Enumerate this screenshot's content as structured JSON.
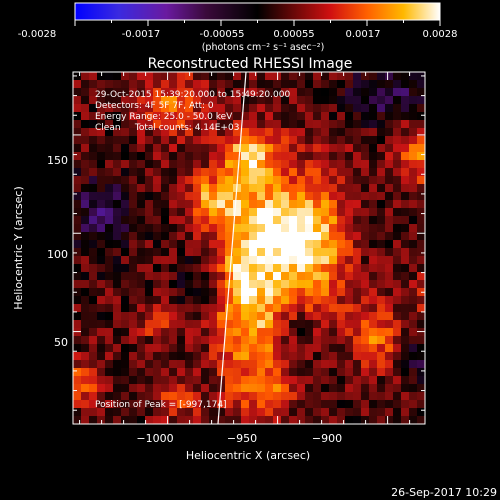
{
  "colorbar": {
    "ticks": [
      "-0.0028",
      "-0.0017",
      "-0.00055",
      "0.00055",
      "0.0017",
      "0.0028"
    ],
    "unit": "(photons cm⁻² s⁻¹ asec⁻²)"
  },
  "title": "Reconstructed RHESSI Image",
  "info": {
    "line1": "29-Oct-2015 15:39:20.000 to 15:49:20.000",
    "line2": "Detectors: 4F 5F 7F, Att: 0",
    "line3": "Energy Range: 25.0 - 50.0 keV",
    "line4": "Clean     Total counts: 4.14E+03",
    "peak": "Position of Peak = [-997,174]"
  },
  "footer": {
    "timestamp": "26-Sep-2017 10:29"
  },
  "chart_data": {
    "type": "heatmap",
    "title": "Reconstructed RHESSI Image",
    "xlabel": "Heliocentric X (arcsec)",
    "ylabel": "Heliocentric Y (arcsec)",
    "xlim": [
      -1043,
      -983
    ],
    "ylim": [
      3,
      182
    ],
    "x_ticks": [
      -1000,
      -950,
      -900
    ],
    "y_ticks": [
      50,
      100,
      150
    ],
    "x_tick_labels": [
      "−1000",
      "−950",
      "−900"
    ],
    "y_tick_labels": [
      "50",
      "100",
      "150"
    ],
    "color_range": [
      -0.0028,
      0.0028
    ],
    "colormap": [
      "#0000c8",
      "#5a1eb4",
      "#3c0a50",
      "#000000",
      "#5a0a0a",
      "#c81414",
      "#ff5a00",
      "#ffb400",
      "#ffffff"
    ],
    "sources": [
      {
        "x": -962,
        "y": 78,
        "sx": 12,
        "sy": 40,
        "amp": 1.0
      },
      {
        "x": -945,
        "y": 100,
        "sx": 8,
        "sy": 15,
        "amp": 0.7
      },
      {
        "x": -930,
        "y": 95,
        "sx": 10,
        "sy": 28,
        "amp": 0.7
      },
      {
        "x": -980,
        "y": 118,
        "sx": 10,
        "sy": 8,
        "amp": 0.6
      },
      {
        "x": -962,
        "y": 140,
        "sx": 10,
        "sy": 8,
        "amp": 0.6
      },
      {
        "x": -905,
        "y": 48,
        "sx": 8,
        "sy": 12,
        "amp": 0.55
      },
      {
        "x": -998,
        "y": 165,
        "sx": 10,
        "sy": 12,
        "amp": 0.55
      },
      {
        "x": -1038,
        "y": 25,
        "sx": 6,
        "sy": 8,
        "amp": 0.5
      },
      {
        "x": -1005,
        "y": 55,
        "sx": 6,
        "sy": 6,
        "amp": 0.45
      },
      {
        "x": -995,
        "y": 15,
        "sx": 8,
        "sy": 6,
        "amp": 0.4
      },
      {
        "x": -885,
        "y": 140,
        "sx": 8,
        "sy": 12,
        "amp": 0.55
      },
      {
        "x": -875,
        "y": 70,
        "sx": 8,
        "sy": 10,
        "amp": 0.5
      },
      {
        "x": -955,
        "y": 20,
        "sx": 8,
        "sy": 6,
        "amp": 0.4
      },
      {
        "x": -985,
        "y": 75,
        "sx": 8,
        "sy": 8,
        "amp": -0.35
      },
      {
        "x": -1030,
        "y": 110,
        "sx": 10,
        "sy": 12,
        "amp": -0.45
      },
      {
        "x": -900,
        "y": 170,
        "sx": 14,
        "sy": 10,
        "amp": -0.4
      },
      {
        "x": -880,
        "y": 35,
        "sx": 8,
        "sy": 8,
        "amp": -0.45
      },
      {
        "x": -940,
        "y": 50,
        "sx": 6,
        "sy": 8,
        "amp": -0.3
      }
    ]
  }
}
